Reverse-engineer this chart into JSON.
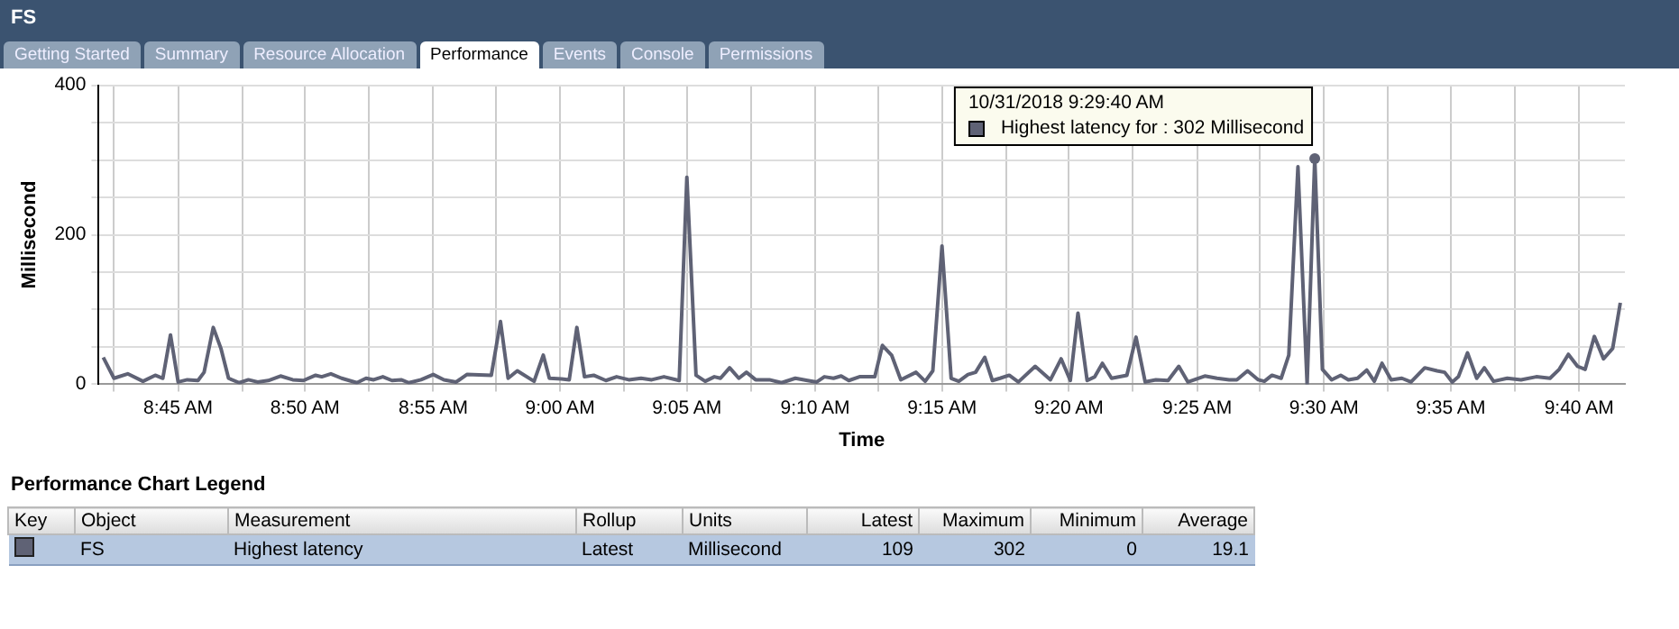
{
  "chart_data": {
    "type": "line",
    "title": "FS",
    "xlabel": "Time",
    "ylabel": "Millisecond",
    "legend_title": "Performance Chart Legend",
    "legend": "bottom",
    "grid": true,
    "marker": "none",
    "line_style": "solid",
    "xlim": [
      8.698,
      9.697
    ],
    "ylim": [
      0,
      400
    ],
    "xticks": [
      {
        "value": 8.708,
        "label": null
      },
      {
        "value": 8.75,
        "label": "8:45 AM"
      },
      {
        "value": 8.792,
        "label": null
      },
      {
        "value": 8.833,
        "label": "8:50 AM"
      },
      {
        "value": 8.875,
        "label": null
      },
      {
        "value": 8.917,
        "label": "8:55 AM"
      },
      {
        "value": 8.958,
        "label": null
      },
      {
        "value": 9,
        "label": "9:00 AM"
      },
      {
        "value": 9.042,
        "label": null
      },
      {
        "value": 9.083,
        "label": "9:05 AM"
      },
      {
        "value": 9.125,
        "label": null
      },
      {
        "value": 9.167,
        "label": "9:10 AM"
      },
      {
        "value": 9.208,
        "label": null
      },
      {
        "value": 9.25,
        "label": "9:15 AM"
      },
      {
        "value": 9.292,
        "label": null
      },
      {
        "value": 9.333,
        "label": "9:20 AM"
      },
      {
        "value": 9.375,
        "label": null
      },
      {
        "value": 9.417,
        "label": "9:25 AM"
      },
      {
        "value": 9.458,
        "label": null
      },
      {
        "value": 9.5,
        "label": "9:30 AM"
      },
      {
        "value": 9.542,
        "label": null
      },
      {
        "value": 9.583,
        "label": "9:35 AM"
      },
      {
        "value": 9.625,
        "label": null
      },
      {
        "value": 9.667,
        "label": "9:40 AM"
      }
    ],
    "yticks": [
      0,
      {
        "value": 50,
        "label": null
      },
      {
        "value": 100,
        "label": null
      },
      {
        "value": 150,
        "label": null
      },
      200,
      {
        "value": 250,
        "label": null
      },
      {
        "value": 300,
        "label": null
      },
      {
        "value": 350,
        "label": null
      },
      400
    ],
    "x": [
      8.701,
      8.708,
      8.717,
      8.727,
      8.735,
      8.74,
      8.745,
      8.75,
      8.756,
      8.763,
      8.767,
      8.773,
      8.778,
      8.783,
      8.79,
      8.796,
      8.802,
      8.809,
      8.817,
      8.825,
      8.832,
      8.84,
      8.844,
      8.85,
      8.857,
      8.867,
      8.873,
      8.878,
      8.884,
      8.89,
      8.896,
      8.901,
      8.909,
      8.917,
      8.924,
      8.932,
      8.939,
      8.955,
      8.961,
      8.966,
      8.972,
      8.983,
      8.989,
      8.993,
      9.001,
      9.006,
      9.011,
      9.016,
      9.022,
      9.03,
      9.037,
      9.045,
      9.053,
      9.06,
      9.068,
      9.078,
      9.083,
      9.089,
      9.095,
      9.101,
      9.105,
      9.111,
      9.117,
      9.122,
      9.128,
      9.137,
      9.145,
      9.154,
      9.162,
      9.168,
      9.173,
      9.179,
      9.184,
      9.189,
      9.196,
      9.206,
      9.211,
      9.217,
      9.223,
      9.233,
      9.239,
      9.244,
      9.25,
      9.256,
      9.261,
      9.267,
      9.272,
      9.278,
      9.283,
      9.288,
      9.294,
      9.3,
      9.311,
      9.321,
      9.328,
      9.334,
      9.339,
      9.345,
      9.35,
      9.355,
      9.361,
      9.371,
      9.377,
      9.383,
      9.39,
      9.398,
      9.405,
      9.411,
      9.422,
      9.43,
      9.438,
      9.443,
      9.45,
      9.457,
      9.461,
      9.466,
      9.472,
      9.477,
      9.483,
      9.489,
      9.494,
      9.499,
      9.505,
      9.511,
      9.516,
      9.522,
      9.528,
      9.533,
      9.538,
      9.544,
      9.551,
      9.557,
      9.566,
      9.574,
      9.579,
      9.584,
      9.588,
      9.594,
      9.6,
      9.605,
      9.611,
      9.62,
      9.629,
      9.639,
      9.648,
      9.654,
      9.66,
      9.666,
      9.671,
      9.677,
      9.683,
      9.689,
      9.694
    ],
    "series": [
      {
        "name": "Highest latency",
        "color": "#5f6275",
        "values": [
          36,
          8,
          14,
          4,
          12,
          8,
          66,
          3,
          6,
          5,
          16,
          76,
          48,
          8,
          2,
          6,
          3,
          5,
          11,
          6,
          5,
          12,
          10,
          14,
          8,
          2,
          8,
          6,
          10,
          5,
          6,
          2,
          6,
          13,
          6,
          3,
          13,
          12,
          84,
          8,
          18,
          4,
          39,
          8,
          7,
          6,
          76,
          10,
          12,
          5,
          10,
          6,
          8,
          6,
          10,
          5,
          277,
          12,
          4,
          10,
          8,
          22,
          8,
          16,
          6,
          6,
          2,
          8,
          5,
          3,
          10,
          8,
          11,
          5,
          10,
          10,
          52,
          39,
          6,
          16,
          4,
          18,
          185,
          8,
          4,
          13,
          16,
          36,
          5,
          8,
          12,
          3,
          24,
          6,
          34,
          5,
          95,
          5,
          10,
          28,
          8,
          12,
          63,
          3,
          6,
          5,
          24,
          3,
          11,
          8,
          6,
          6,
          18,
          6,
          4,
          12,
          8,
          39,
          291,
          0,
          302,
          20,
          6,
          12,
          6,
          8,
          19,
          4,
          28,
          6,
          8,
          3,
          22,
          18,
          16,
          3,
          10,
          42,
          8,
          22,
          4,
          8,
          6,
          10,
          8,
          20,
          40,
          24,
          20,
          64,
          34,
          48,
          109
        ]
      }
    ],
    "annotations": [
      "Getting Started",
      "Summary",
      "Resource Allocation",
      "Performance",
      "Events",
      "Console",
      "Permissions",
      {
        "text": "10/31/2018 9:29:40 AM\nHighest latency for : 302 Millisecond",
        "x": 9.494,
        "y": 302
      },
      "Key",
      "Object",
      "Measurement",
      "Rollup",
      "Units",
      "Latest",
      "Maximum",
      "Minimum",
      "Average",
      "FS",
      "Latest",
      "Millisecond",
      "109",
      "302",
      "0",
      "19.1"
    ]
  }
}
